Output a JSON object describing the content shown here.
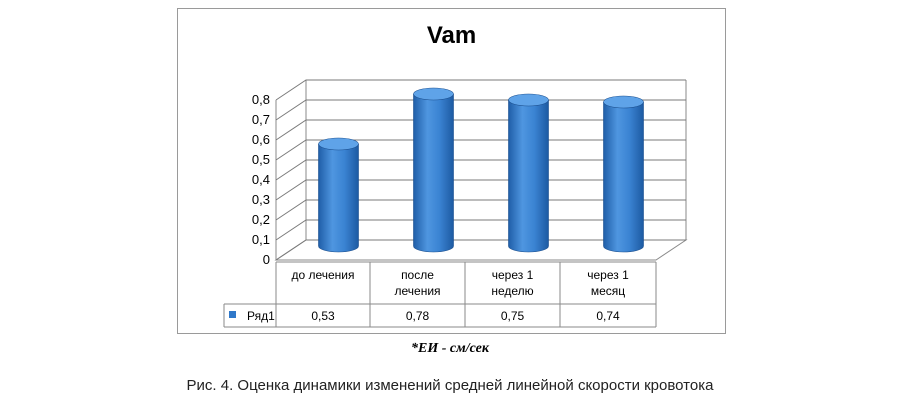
{
  "chart_data": {
    "type": "bar",
    "title": "Vam",
    "categories": [
      [
        "до лечения"
      ],
      [
        "после",
        "лечения"
      ],
      [
        "через 1",
        "неделю"
      ],
      [
        "через 1",
        "месяц"
      ]
    ],
    "series": [
      {
        "name": "Ряд1",
        "values": [
          0.53,
          0.78,
          0.75,
          0.74
        ],
        "color": "#2f78c9"
      }
    ],
    "value_labels": [
      "0,53",
      "0,78",
      "0,75",
      "0,74"
    ],
    "yticks": [
      "0",
      "0,1",
      "0,2",
      "0,3",
      "0,4",
      "0,5",
      "0,6",
      "0,7",
      "0,8"
    ],
    "ylim": [
      0,
      0.8
    ],
    "legend_placement": "data-table"
  },
  "unit_note": "*ЕИ - см/сек",
  "caption": "Рис. 4. Оценка динамики изменений средней линейной скорости кровотока"
}
